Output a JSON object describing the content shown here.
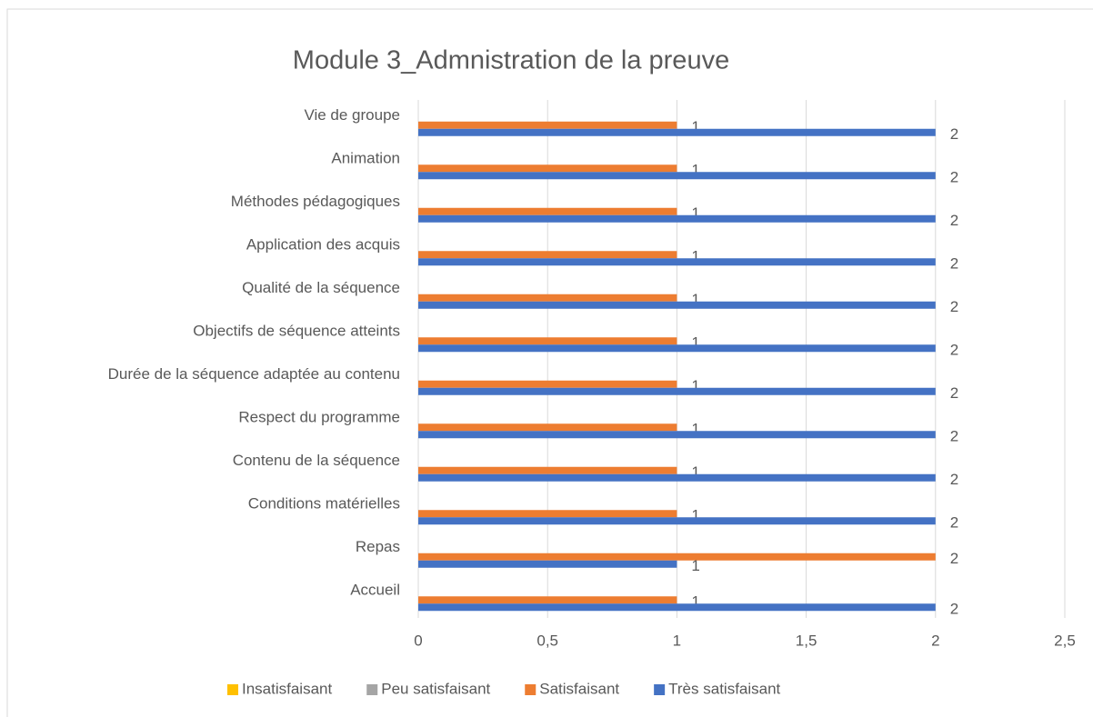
{
  "chart_data": {
    "type": "bar",
    "orientation": "horizontal",
    "title": "Module 3_Admnistration de la preuve",
    "categories": [
      "Accueil",
      "Repas",
      "Conditions matérielles",
      "Contenu de la séquence",
      "Respect du programme",
      "Durée de la séquence adaptée au contenu",
      "Objectifs de séquence atteints",
      "Qualité de la séquence",
      "Application des acquis",
      "Méthodes pédagogiques",
      "Animation",
      "Vie de groupe"
    ],
    "series": [
      {
        "name": "Insatisfaisant",
        "color": "#ffc000",
        "values": [
          null,
          null,
          null,
          null,
          null,
          null,
          null,
          null,
          null,
          null,
          null,
          null
        ]
      },
      {
        "name": "Peu satisfaisant",
        "color": "#a5a5a5",
        "values": [
          null,
          null,
          null,
          null,
          null,
          null,
          null,
          null,
          null,
          null,
          null,
          null
        ]
      },
      {
        "name": "Satisfaisant",
        "color": "#ed7d31",
        "values": [
          1,
          2,
          1,
          1,
          1,
          1,
          1,
          1,
          1,
          1,
          1,
          1
        ]
      },
      {
        "name": "Très satisfaisant",
        "color": "#4472c4",
        "values": [
          2,
          1,
          2,
          2,
          2,
          2,
          2,
          2,
          2,
          2,
          2,
          2
        ]
      }
    ],
    "xlim": [
      0,
      2.5
    ],
    "xticks": [
      0,
      {
        "value": 0.5,
        "label": "0,5"
      },
      1,
      {
        "value": 1.5,
        "label": "1,5"
      },
      2,
      {
        "value": 2.5,
        "label": "2,5"
      }
    ],
    "grid": true,
    "legend": "bottom"
  }
}
